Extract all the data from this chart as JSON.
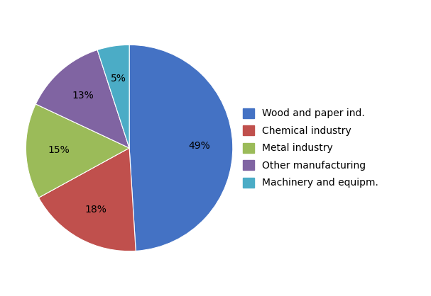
{
  "labels": [
    "Wood and paper ind.",
    "Chemical industry",
    "Metal industry",
    "Other manufacturing",
    "Machinery and equipm."
  ],
  "values": [
    49,
    18,
    15,
    13,
    5
  ],
  "pct_labels": [
    "49%",
    "18%",
    "15%",
    "13%",
    "5%"
  ],
  "colors": [
    "#4472C4",
    "#C0504D",
    "#9BBB59",
    "#8064A2",
    "#4BACC6"
  ],
  "startangle": 90,
  "background_color": "#ffffff",
  "legend_fontsize": 10,
  "pct_fontsize": 10
}
